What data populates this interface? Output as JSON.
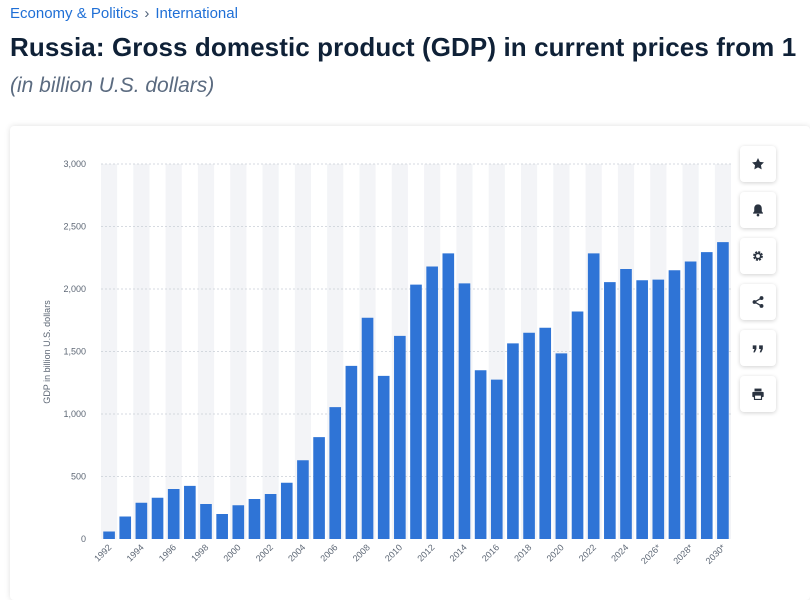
{
  "breadcrumb": {
    "category": "Economy & Politics",
    "separator": "›",
    "subcategory": "International"
  },
  "page": {
    "title": "Russia: Gross domestic product (GDP) in current prices from 1",
    "subtitle": "(in billion U.S. dollars)"
  },
  "toolbar": [
    {
      "name": "favorite-button",
      "icon": "star-icon"
    },
    {
      "name": "notification-button",
      "icon": "bell-icon"
    },
    {
      "name": "settings-button",
      "icon": "gear-icon"
    },
    {
      "name": "share-button",
      "icon": "share-icon"
    },
    {
      "name": "cite-button",
      "icon": "quote-icon"
    },
    {
      "name": "print-button",
      "icon": "printer-icon"
    }
  ],
  "colors": {
    "bar": "#2f74d6",
    "band": "#f3f4f7",
    "grid": "#c9ced6",
    "accent": "#1f6fd6"
  },
  "chart_data": {
    "type": "bar",
    "ylabel": "GDP in billion U.S. dollars",
    "xlabel": "",
    "ylim": [
      0,
      3000
    ],
    "yticks": [
      0,
      500,
      1000,
      1500,
      2000,
      2500,
      3000
    ],
    "ytick_labels": [
      "0",
      "500",
      "1,000",
      "1,500",
      "2,000",
      "2,500",
      "3,000"
    ],
    "grid": true,
    "categories": [
      "1992",
      "1993",
      "1994",
      "1995",
      "1996",
      "1997",
      "1998",
      "1999",
      "2000",
      "2001",
      "2002",
      "2003",
      "2004",
      "2005",
      "2006",
      "2007",
      "2008",
      "2009",
      "2010",
      "2011",
      "2012",
      "2013",
      "2014",
      "2015",
      "2016",
      "2017",
      "2018",
      "2019",
      "2020",
      "2021",
      "2022",
      "2023",
      "2024",
      "2025",
      "2026*",
      "2027*",
      "2028*",
      "2029*",
      "2030*"
    ],
    "xtick_labels": [
      "1992",
      "",
      "1994",
      "",
      "1996",
      "",
      "1998",
      "",
      "2000",
      "",
      "2002",
      "",
      "2004",
      "",
      "2006",
      "",
      "2008",
      "",
      "2010",
      "",
      "2012",
      "",
      "2014",
      "",
      "2016",
      "",
      "2018",
      "",
      "2020",
      "",
      "2022",
      "",
      "2024",
      "",
      "2026*",
      "",
      "2028*",
      "",
      "2030*"
    ],
    "values": [
      60,
      180,
      290,
      330,
      400,
      425,
      280,
      200,
      270,
      320,
      360,
      450,
      630,
      815,
      1055,
      1385,
      1770,
      1305,
      1625,
      2035,
      2180,
      2285,
      2045,
      1350,
      1275,
      1565,
      1650,
      1690,
      1485,
      1820,
      2285,
      2055,
      2160,
      2070,
      2075,
      2150,
      2220,
      2295,
      2375
    ]
  }
}
